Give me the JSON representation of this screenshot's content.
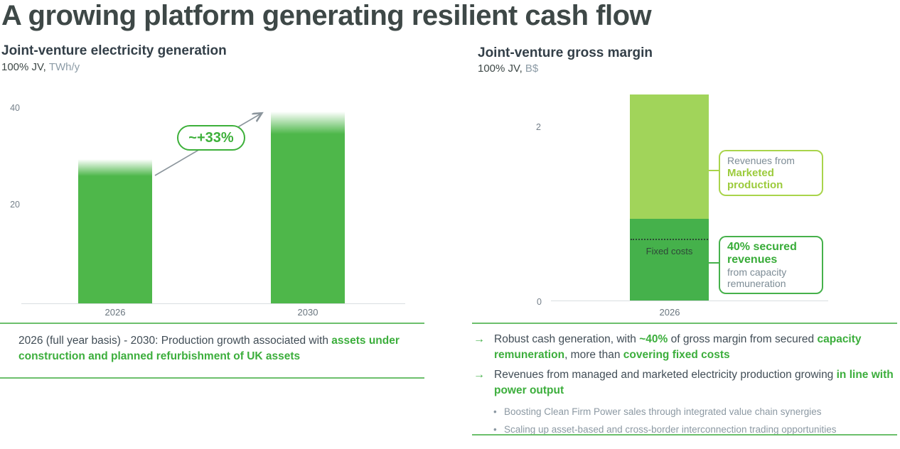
{
  "title": "A growing platform generating resilient cash flow",
  "left": {
    "chart_title": "Joint-venture electricity generation",
    "basis": "100% JV,",
    "unit": "TWh/y",
    "footnote_segments": [
      {
        "text": "2026 (full year basis) - 2030: Production growth associated with ",
        "style": "plain"
      },
      {
        "text": "assets under construction and planned refurbishment of UK assets",
        "style": "highlight"
      }
    ]
  },
  "right": {
    "chart_title": "Joint-venture gross margin",
    "basis": "100% JV,",
    "unit": "B$",
    "arrow_glyph": "→",
    "dot_glyph": "•",
    "callout_marketed": {
      "line1": "Revenues from",
      "line2": "Marketed",
      "line3": "production"
    },
    "callout_secured": {
      "line1": "40% secured",
      "line2": "revenues",
      "line3": "from capacity",
      "line4": "remuneration"
    },
    "bullet1_segments": [
      {
        "text": "Robust cash generation, with ",
        "style": "plain"
      },
      {
        "text": "~40%",
        "style": "highlight"
      },
      {
        "text": " of gross margin from secured ",
        "style": "plain"
      },
      {
        "text": "capacity remuneration",
        "style": "highlight"
      },
      {
        "text": ", more than ",
        "style": "plain"
      },
      {
        "text": "covering fixed costs",
        "style": "highlight"
      }
    ],
    "bullet2_segments": [
      {
        "text": "Revenues from managed and marketed electricity production growing ",
        "style": "plain"
      },
      {
        "text": "in line with power output",
        "style": "highlight"
      }
    ],
    "sub_bullets": [
      "Boosting Clean Firm Power sales through integrated value chain synergies",
      "Scaling up asset-based and cross-border interconnection trading opportunities"
    ]
  },
  "colors": {
    "accent_green": "#3CAE3C",
    "bar_green": "#4EB74A",
    "bar_dark_green": "#45B14B",
    "bar_light_green": "#A1D45A",
    "lime_text": "#9CCB3C",
    "separator_green": "#6CBF6C",
    "unit_gray": "#8C9BA6",
    "title_dark": "#3E4847",
    "body_gray": "#414D56",
    "muted_gray": "#8C99A3",
    "axis_gray": "#D9DEE1",
    "arrow_gray": "#8B959C"
  },
  "chart_data": [
    {
      "type": "bar",
      "title": "Joint-venture electricity generation",
      "subtitle": "100% JV, TWh/y",
      "unit": "TWh/y",
      "categories": [
        "2026",
        "2030"
      ],
      "values": [
        30,
        40
      ],
      "yticks": [
        20,
        40
      ],
      "ylim": [
        0,
        44
      ],
      "grid": false,
      "legend": "none",
      "annotation": "~+33%"
    },
    {
      "type": "bar",
      "stacked": true,
      "title": "Joint-venture gross margin",
      "subtitle": "100% JV, B$",
      "unit": "B$",
      "categories": [
        "2026"
      ],
      "series": [
        {
          "name": "40% secured revenues from capacity remuneration",
          "values": [
            0.95
          ],
          "color": "#45B14B"
        },
        {
          "name": "Revenues from Marketed production",
          "values": [
            1.44
          ],
          "color": "#A1D45A"
        }
      ],
      "yticks": [
        0,
        2
      ],
      "ylim": [
        0,
        2.5
      ],
      "grid": false,
      "legend": "callouts",
      "reference_line": {
        "label": "Fixed costs",
        "value": 0.7,
        "style": "dotted"
      }
    }
  ]
}
